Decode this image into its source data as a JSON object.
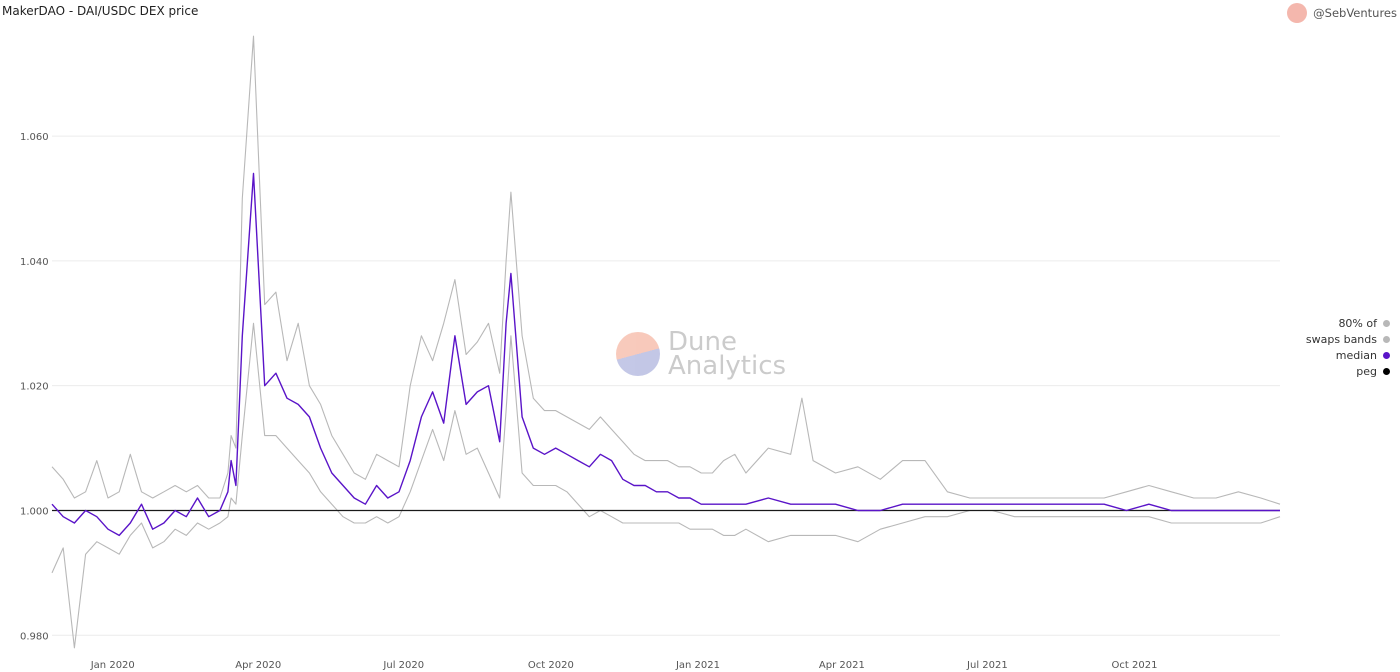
{
  "header": {
    "title": "MakerDAO - DAI/USDC DEX price",
    "author": "@SebVentures"
  },
  "watermark": {
    "line1": "Dune",
    "line2": "Analytics"
  },
  "legend": [
    {
      "label": "80% of",
      "color": "#b8b8b8"
    },
    {
      "label": "swaps bands",
      "color": "#b8b8b8"
    },
    {
      "label": "median",
      "color": "#5a14c8"
    },
    {
      "label": "peg",
      "color": "#000000"
    }
  ],
  "colors": {
    "band": "#b8b8b8",
    "median": "#5a14c8",
    "peg": "#1a1a1a",
    "grid": "#ececec"
  },
  "chart_data": {
    "type": "line",
    "title": "MakerDAO - DAI/USDC DEX price",
    "xlabel": "",
    "ylabel": "",
    "x_range": [
      "2019-11-24",
      "2021-12-31"
    ],
    "ylim": [
      0.977,
      1.077
    ],
    "yticks": [
      0.98,
      1.0,
      1.02,
      1.04,
      1.06
    ],
    "ytick_labels": [
      "0.980",
      "1.000",
      "1.020",
      "1.040",
      "1.060"
    ],
    "xticks": [
      "2020-01-01",
      "2020-04-01",
      "2020-07-01",
      "2020-10-01",
      "2021-01-01",
      "2021-04-01",
      "2021-07-01",
      "2021-10-01"
    ],
    "xtick_labels": [
      "Jan 2020",
      "Apr 2020",
      "Jul 2020",
      "Oct 2020",
      "Jan 2021",
      "Apr 2021",
      "Jul 2021",
      "Oct 2021"
    ],
    "grid": true,
    "legend_position": "right",
    "peg": 1.0,
    "series": [
      {
        "name": "median",
        "x": [
          "2019-11-24",
          "2019-12-01",
          "2019-12-08",
          "2019-12-15",
          "2019-12-22",
          "2019-12-29",
          "2020-01-05",
          "2020-01-12",
          "2020-01-19",
          "2020-01-26",
          "2020-02-02",
          "2020-02-09",
          "2020-02-16",
          "2020-02-23",
          "2020-03-01",
          "2020-03-08",
          "2020-03-13",
          "2020-03-15",
          "2020-03-18",
          "2020-03-22",
          "2020-03-29",
          "2020-04-05",
          "2020-04-12",
          "2020-04-19",
          "2020-04-26",
          "2020-05-03",
          "2020-05-10",
          "2020-05-17",
          "2020-05-24",
          "2020-05-31",
          "2020-06-07",
          "2020-06-14",
          "2020-06-21",
          "2020-06-28",
          "2020-07-05",
          "2020-07-12",
          "2020-07-19",
          "2020-07-26",
          "2020-08-02",
          "2020-08-09",
          "2020-08-16",
          "2020-08-23",
          "2020-08-30",
          "2020-09-03",
          "2020-09-06",
          "2020-09-13",
          "2020-09-20",
          "2020-09-27",
          "2020-10-04",
          "2020-10-11",
          "2020-10-18",
          "2020-10-25",
          "2020-11-01",
          "2020-11-08",
          "2020-11-15",
          "2020-11-22",
          "2020-11-29",
          "2020-12-06",
          "2020-12-13",
          "2020-12-20",
          "2020-12-27",
          "2021-01-03",
          "2021-01-10",
          "2021-01-17",
          "2021-01-24",
          "2021-01-31",
          "2021-02-14",
          "2021-02-28",
          "2021-03-14",
          "2021-03-28",
          "2021-04-11",
          "2021-04-25",
          "2021-05-09",
          "2021-05-23",
          "2021-06-06",
          "2021-06-20",
          "2021-07-04",
          "2021-07-18",
          "2021-08-01",
          "2021-08-15",
          "2021-08-29",
          "2021-09-12",
          "2021-09-26",
          "2021-10-10",
          "2021-10-24",
          "2021-11-07",
          "2021-11-21",
          "2021-12-05",
          "2021-12-19",
          "2021-12-31"
        ],
        "y": [
          1.001,
          0.999,
          0.998,
          1.0,
          0.999,
          0.997,
          0.996,
          0.998,
          1.001,
          0.997,
          0.998,
          1.0,
          0.999,
          1.002,
          0.999,
          1.0,
          1.003,
          1.008,
          1.004,
          1.028,
          1.054,
          1.02,
          1.022,
          1.018,
          1.017,
          1.015,
          1.01,
          1.006,
          1.004,
          1.002,
          1.001,
          1.004,
          1.002,
          1.003,
          1.008,
          1.015,
          1.019,
          1.014,
          1.028,
          1.017,
          1.019,
          1.02,
          1.011,
          1.03,
          1.038,
          1.015,
          1.01,
          1.009,
          1.01,
          1.009,
          1.008,
          1.007,
          1.009,
          1.008,
          1.005,
          1.004,
          1.004,
          1.003,
          1.003,
          1.002,
          1.002,
          1.001,
          1.001,
          1.001,
          1.001,
          1.001,
          1.002,
          1.001,
          1.001,
          1.001,
          1.0,
          1.0,
          1.001,
          1.001,
          1.001,
          1.001,
          1.001,
          1.001,
          1.001,
          1.001,
          1.001,
          1.001,
          1.0,
          1.001,
          1.0,
          1.0,
          1.0,
          1.0,
          1.0,
          1.0
        ]
      },
      {
        "name": "",
        "role": "upper band",
        "x": [
          "2019-11-24",
          "2019-12-01",
          "2019-12-08",
          "2019-12-15",
          "2019-12-22",
          "2019-12-29",
          "2020-01-05",
          "2020-01-12",
          "2020-01-19",
          "2020-01-26",
          "2020-02-02",
          "2020-02-09",
          "2020-02-16",
          "2020-02-23",
          "2020-03-01",
          "2020-03-08",
          "2020-03-13",
          "2020-03-15",
          "2020-03-18",
          "2020-03-22",
          "2020-03-29",
          "2020-04-05",
          "2020-04-12",
          "2020-04-19",
          "2020-04-26",
          "2020-05-03",
          "2020-05-10",
          "2020-05-17",
          "2020-05-24",
          "2020-05-31",
          "2020-06-07",
          "2020-06-14",
          "2020-06-21",
          "2020-06-28",
          "2020-07-05",
          "2020-07-12",
          "2020-07-19",
          "2020-07-26",
          "2020-08-02",
          "2020-08-09",
          "2020-08-16",
          "2020-08-23",
          "2020-08-30",
          "2020-09-03",
          "2020-09-06",
          "2020-09-13",
          "2020-09-20",
          "2020-09-27",
          "2020-10-04",
          "2020-10-11",
          "2020-10-18",
          "2020-10-25",
          "2020-11-01",
          "2020-11-08",
          "2020-11-15",
          "2020-11-22",
          "2020-11-29",
          "2020-12-06",
          "2020-12-13",
          "2020-12-20",
          "2020-12-27",
          "2021-01-03",
          "2021-01-10",
          "2021-01-17",
          "2021-01-24",
          "2021-01-31",
          "2021-02-14",
          "2021-02-28",
          "2021-03-07",
          "2021-03-14",
          "2021-03-28",
          "2021-04-11",
          "2021-04-25",
          "2021-05-09",
          "2021-05-23",
          "2021-06-06",
          "2021-06-20",
          "2021-07-04",
          "2021-07-18",
          "2021-08-01",
          "2021-08-15",
          "2021-08-29",
          "2021-09-12",
          "2021-09-26",
          "2021-10-10",
          "2021-10-24",
          "2021-11-07",
          "2021-11-21",
          "2021-12-05",
          "2021-12-19",
          "2021-12-31"
        ],
        "y": [
          1.007,
          1.005,
          1.002,
          1.003,
          1.008,
          1.002,
          1.003,
          1.009,
          1.003,
          1.002,
          1.003,
          1.004,
          1.003,
          1.004,
          1.002,
          1.002,
          1.006,
          1.012,
          1.01,
          1.05,
          1.076,
          1.033,
          1.035,
          1.024,
          1.03,
          1.02,
          1.017,
          1.012,
          1.009,
          1.006,
          1.005,
          1.009,
          1.008,
          1.007,
          1.02,
          1.028,
          1.024,
          1.03,
          1.037,
          1.025,
          1.027,
          1.03,
          1.022,
          1.04,
          1.051,
          1.028,
          1.018,
          1.016,
          1.016,
          1.015,
          1.014,
          1.013,
          1.015,
          1.013,
          1.011,
          1.009,
          1.008,
          1.008,
          1.008,
          1.007,
          1.007,
          1.006,
          1.006,
          1.008,
          1.009,
          1.006,
          1.01,
          1.009,
          1.018,
          1.008,
          1.006,
          1.007,
          1.005,
          1.008,
          1.008,
          1.003,
          1.002,
          1.002,
          1.002,
          1.002,
          1.002,
          1.002,
          1.002,
          1.003,
          1.004,
          1.003,
          1.002,
          1.002,
          1.003,
          1.002,
          1.001
        ]
      },
      {
        "name": "",
        "role": "lower band",
        "x": [
          "2019-11-24",
          "2019-12-01",
          "2019-12-08",
          "2019-12-15",
          "2019-12-22",
          "2019-12-29",
          "2020-01-05",
          "2020-01-12",
          "2020-01-19",
          "2020-01-26",
          "2020-02-02",
          "2020-02-09",
          "2020-02-16",
          "2020-02-23",
          "2020-03-01",
          "2020-03-08",
          "2020-03-13",
          "2020-03-15",
          "2020-03-18",
          "2020-03-22",
          "2020-03-29",
          "2020-04-05",
          "2020-04-12",
          "2020-04-19",
          "2020-04-26",
          "2020-05-03",
          "2020-05-10",
          "2020-05-17",
          "2020-05-24",
          "2020-05-31",
          "2020-06-07",
          "2020-06-14",
          "2020-06-21",
          "2020-06-28",
          "2020-07-05",
          "2020-07-12",
          "2020-07-19",
          "2020-07-26",
          "2020-08-02",
          "2020-08-09",
          "2020-08-16",
          "2020-08-23",
          "2020-08-30",
          "2020-09-03",
          "2020-09-06",
          "2020-09-13",
          "2020-09-20",
          "2020-09-27",
          "2020-10-04",
          "2020-10-11",
          "2020-10-18",
          "2020-10-25",
          "2020-11-01",
          "2020-11-08",
          "2020-11-15",
          "2020-11-22",
          "2020-11-29",
          "2020-12-06",
          "2020-12-13",
          "2020-12-20",
          "2020-12-27",
          "2021-01-03",
          "2021-01-10",
          "2021-01-17",
          "2021-01-24",
          "2021-01-31",
          "2021-02-14",
          "2021-02-28",
          "2021-03-14",
          "2021-03-28",
          "2021-04-11",
          "2021-04-25",
          "2021-05-09",
          "2021-05-23",
          "2021-06-06",
          "2021-06-20",
          "2021-07-04",
          "2021-07-18",
          "2021-08-01",
          "2021-08-15",
          "2021-08-29",
          "2021-09-12",
          "2021-09-26",
          "2021-10-10",
          "2021-10-24",
          "2021-11-07",
          "2021-11-21",
          "2021-12-05",
          "2021-12-19",
          "2021-12-31"
        ],
        "y": [
          0.99,
          0.994,
          0.978,
          0.993,
          0.995,
          0.994,
          0.993,
          0.996,
          0.998,
          0.994,
          0.995,
          0.997,
          0.996,
          0.998,
          0.997,
          0.998,
          0.999,
          1.002,
          1.001,
          1.012,
          1.03,
          1.012,
          1.012,
          1.01,
          1.008,
          1.006,
          1.003,
          1.001,
          0.999,
          0.998,
          0.998,
          0.999,
          0.998,
          0.999,
          1.003,
          1.008,
          1.013,
          1.008,
          1.016,
          1.009,
          1.01,
          1.006,
          1.002,
          1.016,
          1.028,
          1.006,
          1.004,
          1.004,
          1.004,
          1.003,
          1.001,
          0.999,
          1.0,
          0.999,
          0.998,
          0.998,
          0.998,
          0.998,
          0.998,
          0.998,
          0.997,
          0.997,
          0.997,
          0.996,
          0.996,
          0.997,
          0.995,
          0.996,
          0.996,
          0.996,
          0.995,
          0.997,
          0.998,
          0.999,
          0.999,
          1.0,
          1.0,
          0.999,
          0.999,
          0.999,
          0.999,
          0.999,
          0.999,
          0.999,
          0.998,
          0.998,
          0.998,
          0.998,
          0.998,
          0.999
        ]
      }
    ]
  }
}
